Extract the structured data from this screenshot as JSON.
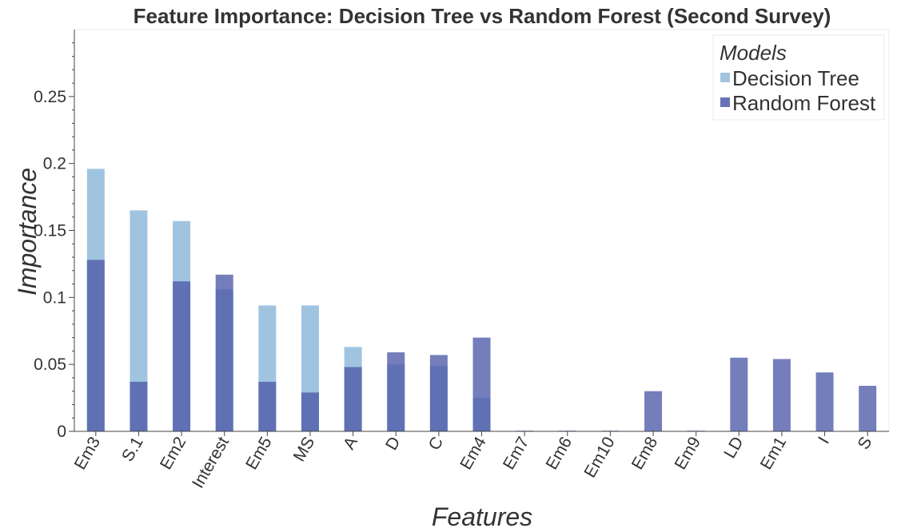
{
  "chart_data": {
    "type": "bar",
    "title": "Feature Importance: Decision Tree vs Random Forest (Second Survey)",
    "xlabel": "Features",
    "ylabel": "Importance",
    "ylim": [
      0,
      0.3
    ],
    "yticks": [
      0,
      0.05,
      0.1,
      0.15,
      0.2,
      0.25
    ],
    "ytick_labels": [
      "0",
      "0.05",
      "0.1",
      "0.15",
      "0.2",
      "0.25"
    ],
    "categories": [
      "Em3",
      "S.1",
      "Em2",
      "Interest",
      "Em5",
      "MS",
      "A",
      "D",
      "C",
      "Em4",
      "Em7",
      "Em6",
      "Em10",
      "Em8",
      "Em9",
      "LD",
      "Em1",
      "I",
      "S"
    ],
    "series": [
      {
        "name": "Decision Tree",
        "color": "#a0c4e0",
        "values": [
          0.196,
          0.165,
          0.157,
          0.106,
          0.094,
          0.094,
          0.063,
          0.05,
          0.049,
          0.025,
          0,
          0,
          0,
          0,
          0,
          0,
          0,
          0,
          0
        ]
      },
      {
        "name": "Random Forest",
        "color": "#4d5aa8",
        "values": [
          0.128,
          0.037,
          0.112,
          0.117,
          0.037,
          0.029,
          0.048,
          0.059,
          0.057,
          0.07,
          0.0005,
          0.0005,
          0.0005,
          0.03,
          0.0005,
          0.055,
          0.054,
          0.044,
          0.034
        ]
      }
    ],
    "legend": {
      "title": "Models",
      "position": "top-right"
    },
    "grid": false
  }
}
